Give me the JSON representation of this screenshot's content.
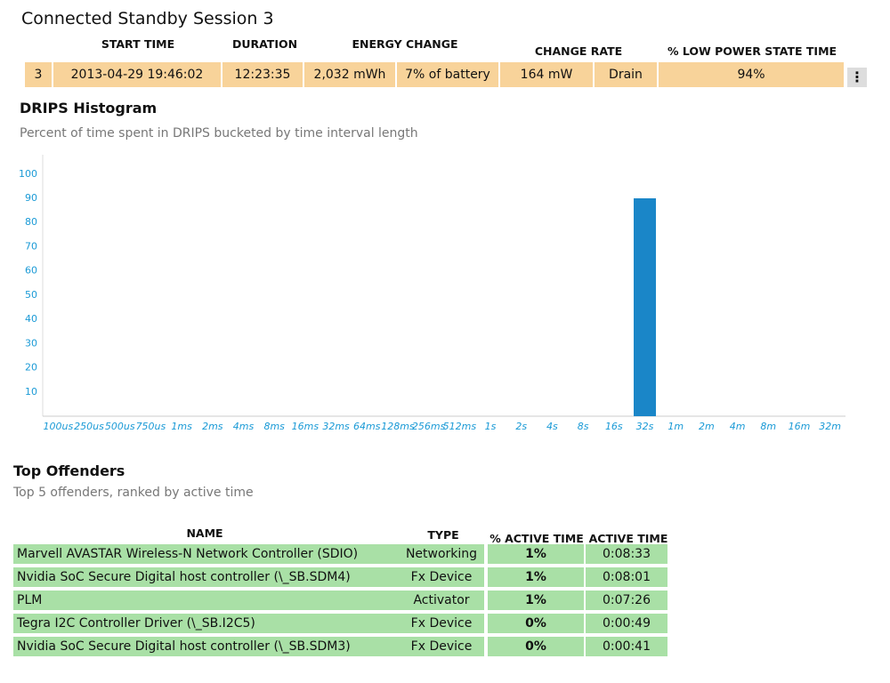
{
  "header": {
    "title": "Connected Standby Session 3"
  },
  "session": {
    "columns": [
      "START TIME",
      "DURATION",
      "ENERGY CHANGE",
      "CHANGE RATE",
      "% LOW POWER STATE TIME"
    ],
    "cells": [
      "3",
      "2013-04-29  19:46:02",
      "12:23:35",
      "2,032 mWh",
      "7% of battery",
      "164 mW",
      "Drain",
      "94%"
    ]
  },
  "chart_data": {
    "type": "bar",
    "title": "DRIPS Histogram",
    "subtitle": "Percent of time spent in DRIPS bucketed by time interval length",
    "categories": [
      "100us",
      "250us",
      "500us",
      "750us",
      "1ms",
      "2ms",
      "4ms",
      "8ms",
      "16ms",
      "32ms",
      "64ms",
      "128ms",
      "256ms",
      "512ms",
      "1s",
      "2s",
      "4s",
      "8s",
      "16s",
      "32s",
      "1m",
      "2m",
      "4m",
      "8m",
      "16m",
      "32m"
    ],
    "values": [
      0,
      0,
      0,
      0,
      0,
      0,
      0,
      0,
      0,
      0,
      0,
      0,
      0,
      0,
      0,
      0,
      0,
      0,
      0,
      90,
      0,
      0,
      0,
      0,
      0,
      0
    ],
    "color": "#1a86c8",
    "ylim": [
      0,
      108
    ],
    "yticks": [
      10,
      20,
      30,
      40,
      50,
      60,
      70,
      80,
      90,
      100
    ],
    "grid": false
  },
  "offenders": {
    "title": "Top Offenders",
    "subtitle": "Top 5 offenders, ranked by active time",
    "columns": [
      "NAME",
      "TYPE",
      "% ACTIVE TIME",
      "ACTIVE TIME"
    ],
    "rows": [
      [
        "Marvell AVASTAR Wireless-N Network Controller (SDIO)",
        "Networking",
        "1%",
        "0:08:33"
      ],
      [
        "Nvidia SoC Secure Digital host controller (\\_SB.SDM4)",
        "Fx Device",
        "1%",
        "0:08:01"
      ],
      [
        "PLM",
        "Activator",
        "1%",
        "0:07:26"
      ],
      [
        "Tegra I2C Controller Driver (\\_SB.I2C5)",
        "Fx Device",
        "0%",
        "0:00:49"
      ],
      [
        "Nvidia SoC Secure Digital host controller (\\_SB.SDM3)",
        "Fx Device",
        "0%",
        "0:00:41"
      ]
    ]
  }
}
